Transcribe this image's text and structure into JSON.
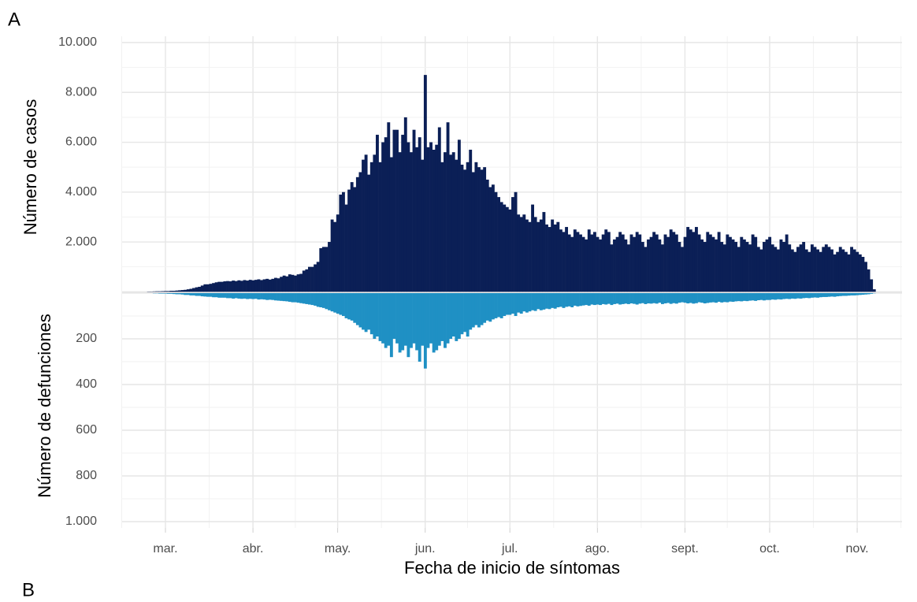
{
  "panels": [
    "A",
    "B"
  ],
  "chart_data": {
    "type": "bar",
    "xlabel": "Fecha de inicio de síntomas",
    "ylabel": "Número de casos",
    "y2label": "Número de defunciones",
    "categories": [
      null,
      null,
      null,
      null,
      null,
      null,
      "mar.",
      null,
      null,
      null,
      null,
      null,
      null,
      null,
      null,
      null,
      null,
      null,
      null,
      null,
      null,
      null,
      null,
      null,
      null,
      null,
      null,
      null,
      null,
      null,
      null,
      null,
      null,
      null,
      null,
      null,
      null,
      "abr.",
      null,
      null,
      null,
      null,
      null,
      null,
      null,
      null,
      null,
      null,
      null,
      null,
      null,
      null,
      null,
      null,
      null,
      null,
      null,
      null,
      null,
      null,
      null,
      null,
      null,
      null,
      null,
      null,
      null,
      "may.",
      null,
      null,
      null,
      null,
      null,
      null,
      null,
      null,
      null,
      null,
      null,
      null,
      null,
      null,
      null,
      null,
      null,
      null,
      null,
      null,
      null,
      null,
      null,
      null,
      null,
      null,
      null,
      null,
      null,
      null,
      "jun.",
      null,
      null,
      null,
      null,
      null,
      null,
      null,
      null,
      null,
      null,
      null,
      null,
      null,
      null,
      null,
      null,
      null,
      null,
      null,
      null,
      null,
      null,
      null,
      null,
      null,
      null,
      null,
      null,
      null,
      "jul.",
      null,
      null,
      null,
      null,
      null,
      null,
      null,
      null,
      null,
      null,
      null,
      null,
      null,
      null,
      null,
      null,
      null,
      null,
      null,
      null,
      null,
      null,
      null,
      null,
      null,
      null,
      null,
      null,
      null,
      null,
      "ago.",
      null,
      null,
      null,
      null,
      null,
      null,
      null,
      null,
      null,
      null,
      null,
      null,
      null,
      null,
      null,
      null,
      null,
      null,
      null,
      null,
      null,
      null,
      null,
      null,
      null,
      null,
      null,
      null,
      null,
      null,
      "sept.",
      null,
      null,
      null,
      null,
      null,
      null,
      null,
      null,
      null,
      null,
      null,
      null,
      null,
      null,
      null,
      null,
      null,
      null,
      null,
      null,
      null,
      null,
      null,
      null,
      null,
      null,
      null,
      null,
      null,
      "oct.",
      null,
      null,
      null,
      null,
      null,
      null,
      null,
      null,
      null,
      null,
      null,
      null,
      null,
      null,
      null,
      null,
      null,
      null,
      null,
      null,
      null,
      null,
      null,
      null,
      null,
      null,
      null,
      null,
      null,
      null,
      "nov.",
      null,
      null,
      null,
      null,
      null,
      null
    ],
    "series": [
      {
        "color": "#0b1f56",
        "values": [
          10,
          10,
          15,
          20,
          20,
          25,
          30,
          30,
          40,
          40,
          50,
          60,
          70,
          80,
          100,
          120,
          150,
          180,
          200,
          250,
          300,
          300,
          320,
          350,
          380,
          400,
          400,
          420,
          430,
          420,
          450,
          430,
          460,
          440,
          470,
          450,
          480,
          460,
          480,
          500,
          470,
          500,
          520,
          490,
          520,
          560,
          540,
          600,
          650,
          620,
          700,
          680,
          650,
          700,
          720,
          850,
          900,
          1000,
          1000,
          1100,
          1200,
          1750,
          1800,
          1800,
          2000,
          2900,
          2800,
          3100,
          3900,
          4000,
          3500,
          4100,
          4400,
          4200,
          4600,
          4800,
          5300,
          5500,
          4700,
          5200,
          5500,
          6300,
          5200,
          6000,
          6200,
          6800,
          5400,
          6500,
          6500,
          5600,
          6300,
          7000,
          6000,
          5600,
          6500,
          5800,
          6200,
          5300,
          8700,
          5800,
          6000,
          5700,
          5900,
          6600,
          5200,
          5600,
          6800,
          5500,
          5600,
          5300,
          6100,
          5100,
          4900,
          5200,
          5700,
          4800,
          5200,
          5000,
          4900,
          5000,
          4500,
          4200,
          4300,
          4000,
          3800,
          3600,
          3500,
          3400,
          3300,
          3800,
          4000,
          3100,
          3000,
          3100,
          2900,
          2800,
          3500,
          3000,
          2800,
          2900,
          3200,
          2700,
          2600,
          2900,
          2700,
          2800,
          2500,
          2400,
          2600,
          2300,
          2200,
          2500,
          2400,
          2300,
          2200,
          2100,
          2500,
          2300,
          2400,
          2200,
          2100,
          2300,
          2500,
          2400,
          1900,
          2100,
          2200,
          2400,
          2300,
          2100,
          1900,
          2300,
          2200,
          2400,
          2300,
          2000,
          1800,
          2100,
          2200,
          2400,
          2300,
          2100,
          1900,
          2300,
          2200,
          2500,
          2400,
          2300,
          2000,
          1800,
          2200,
          2600,
          2500,
          2400,
          2600,
          2300,
          2100,
          2000,
          2400,
          2300,
          2200,
          2100,
          2400,
          2000,
          1900,
          2300,
          2200,
          2100,
          2000,
          1800,
          2200,
          2100,
          2000,
          1900,
          2300,
          2200,
          1800,
          1700,
          2000,
          2100,
          2200,
          1900,
          1800,
          1700,
          2100,
          2000,
          2300,
          1900,
          1700,
          1600,
          1800,
          1900,
          2000,
          1700,
          1600,
          1900,
          1800,
          1700,
          1600,
          1800,
          1900,
          1800,
          1700,
          1500,
          1600,
          1800,
          1700,
          1600,
          1500,
          1800,
          1700,
          1600,
          1500,
          1400,
          1200,
          900,
          500,
          100
        ]
      },
      {
        "color": "#1f90c4",
        "axis": "y2",
        "values": [
          0,
          0,
          1,
          1,
          2,
          2,
          2,
          3,
          3,
          4,
          5,
          5,
          6,
          8,
          8,
          10,
          10,
          12,
          12,
          14,
          15,
          16,
          16,
          18,
          18,
          20,
          20,
          20,
          22,
          22,
          24,
          22,
          24,
          25,
          24,
          26,
          25,
          26,
          25,
          28,
          27,
          28,
          30,
          29,
          30,
          32,
          33,
          34,
          35,
          36,
          38,
          40,
          40,
          42,
          44,
          46,
          48,
          50,
          52,
          55,
          60,
          62,
          65,
          70,
          75,
          80,
          85,
          90,
          95,
          100,
          110,
          115,
          120,
          130,
          140,
          150,
          160,
          170,
          160,
          180,
          200,
          190,
          210,
          220,
          240,
          230,
          280,
          200,
          220,
          260,
          250,
          230,
          280,
          240,
          220,
          250,
          300,
          230,
          330,
          240,
          220,
          260,
          250,
          230,
          210,
          240,
          220,
          200,
          190,
          210,
          200,
          180,
          170,
          190,
          160,
          150,
          140,
          150,
          140,
          130,
          120,
          125,
          115,
          110,
          105,
          110,
          100,
          95,
          95,
          90,
          100,
          85,
          90,
          80,
          85,
          80,
          75,
          78,
          70,
          75,
          72,
          68,
          70,
          65,
          68,
          62,
          60,
          65,
          60,
          58,
          62,
          55,
          58,
          56,
          54,
          52,
          55,
          50,
          52,
          50,
          52,
          48,
          50,
          47,
          52,
          48,
          46,
          50,
          48,
          46,
          48,
          45,
          47,
          50,
          46,
          44,
          48,
          45,
          46,
          44,
          46,
          42,
          48,
          45,
          43,
          47,
          44,
          46,
          42,
          40,
          42,
          45,
          43,
          46,
          44,
          40,
          42,
          45,
          43,
          41,
          40,
          42,
          38,
          41,
          39,
          40,
          37,
          38,
          36,
          35,
          36,
          34,
          35,
          33,
          32,
          34,
          31,
          30,
          32,
          30,
          30,
          28,
          29,
          27,
          28,
          26,
          25,
          26,
          24,
          25,
          23,
          24,
          22,
          21,
          22,
          20,
          19,
          20,
          18,
          17,
          17,
          16,
          15,
          16,
          14,
          13,
          12,
          12,
          11,
          10,
          10,
          9,
          8,
          7,
          6,
          5,
          3,
          1
        ]
      }
    ],
    "ylim": [
      0,
      10000
    ],
    "yticks": [
      {
        "value": 2000,
        "label": "2.000"
      },
      {
        "value": 4000,
        "label": "4.000"
      },
      {
        "value": 6000,
        "label": "6.000"
      },
      {
        "value": 8000,
        "label": "8.000"
      },
      {
        "value": 10000,
        "label": "10.000"
      }
    ],
    "y2lim": [
      0,
      1000
    ],
    "y2ticks": [
      200,
      400,
      600,
      800,
      {
        "value": 1000,
        "label": "1.000"
      }
    ],
    "grid": true
  }
}
